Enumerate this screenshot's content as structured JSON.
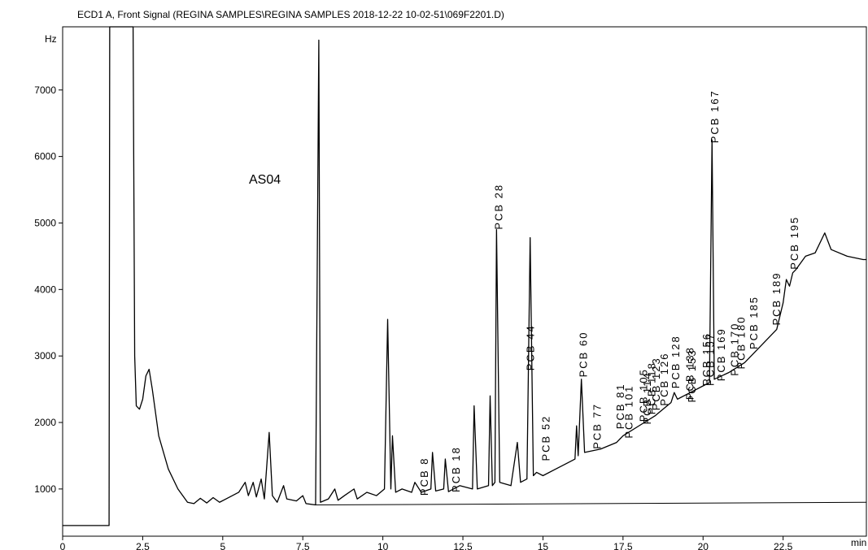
{
  "chart_data": {
    "type": "line",
    "title": "ECD1 A, Front Signal (REGINA SAMPLES\\REGINA SAMPLES 2018-12-22 10-02-51\\069F2201.D)",
    "y_label": "Hz",
    "x_label": "min",
    "sample_label": "AS04",
    "xlim": [
      0,
      25.1
    ],
    "ylim": [
      290,
      7950
    ],
    "xticks": [
      0,
      2.5,
      5,
      7.5,
      10,
      12.5,
      15,
      17.5,
      20,
      22.5
    ],
    "yticks": [
      1000,
      2000,
      3000,
      4000,
      5000,
      6000,
      7000
    ],
    "series": [
      {
        "color": "#000000",
        "x": [
          0,
          1.45,
          1.47,
          2.2,
          2.25,
          2.3,
          2.4,
          2.5,
          2.6,
          2.7,
          2.8,
          3.0,
          3.3,
          3.6,
          3.9,
          4.1,
          4.3,
          4.5,
          4.7,
          4.9,
          5.1,
          5.3,
          5.5,
          5.7,
          5.8,
          5.95,
          6.05,
          6.2,
          6.3,
          6.45,
          6.55,
          6.7,
          6.9,
          7.0,
          7.3,
          7.5,
          7.6,
          7.9,
          8.0,
          8.05,
          8.3,
          8.5,
          8.6,
          8.8,
          9.1,
          9.2,
          9.5,
          9.8,
          10.05,
          10.15,
          10.25,
          10.3,
          10.4,
          10.6,
          10.9,
          11.0,
          11.2,
          11.5,
          11.55,
          11.65,
          11.9,
          11.95,
          12.05,
          12.4,
          12.8,
          12.85,
          12.95,
          13.3,
          13.35,
          13.42,
          13.5,
          13.55,
          13.65,
          14.0,
          14.2,
          14.3,
          14.5,
          14.6,
          14.7,
          14.8,
          15.0,
          15.4,
          15.8,
          16.0,
          16.05,
          16.1,
          16.2,
          16.3,
          16.8,
          17.3,
          17.5,
          18.0,
          18.5,
          19.0,
          19.1,
          19.2,
          19.6,
          20.0,
          20.2,
          20.28,
          20.35,
          20.8,
          21.3,
          21.8,
          22.3,
          22.5,
          22.6,
          22.7,
          22.8,
          22.9,
          23.2,
          23.5,
          23.8,
          24.0,
          24.5,
          25.0,
          25.1
        ],
        "values": [
          450,
          450,
          7950,
          7950,
          3000,
          2250,
          2200,
          2350,
          2700,
          2800,
          2500,
          1800,
          1300,
          1000,
          800,
          780,
          860,
          790,
          870,
          800,
          850,
          900,
          950,
          1100,
          900,
          1100,
          880,
          1150,
          850,
          1850,
          900,
          800,
          1050,
          850,
          820,
          900,
          780,
          760,
          7750,
          800,
          850,
          1000,
          830,
          900,
          1000,
          850,
          950,
          900,
          1000,
          3550,
          1000,
          1800,
          950,
          1000,
          950,
          1100,
          950,
          1000,
          1550,
          970,
          1000,
          1450,
          960,
          1050,
          1000,
          2250,
          1000,
          1050,
          2400,
          1050,
          1100,
          4900,
          1100,
          1050,
          1700,
          1100,
          1150,
          4780,
          1200,
          1250,
          1200,
          1300,
          1400,
          1450,
          1950,
          1500,
          2650,
          1550,
          1600,
          1700,
          1800,
          1950,
          2100,
          2300,
          2450,
          2350,
          2450,
          2550,
          2600,
          6250,
          2650,
          2750,
          2900,
          3150,
          3400,
          3800,
          4150,
          4050,
          4250,
          4300,
          4500,
          4550,
          4850,
          4600,
          4500,
          4450,
          4450
        ]
      },
      {
        "color": "#000000",
        "x": [
          7.9,
          25.1
        ],
        "values": [
          760,
          800
        ]
      }
    ],
    "annotations": [
      {
        "text": "PCB 8",
        "x": 11.3,
        "y": 900
      },
      {
        "text": "PCB 18",
        "x": 12.3,
        "y": 950
      },
      {
        "text": "PCB 28",
        "x": 13.63,
        "y": 4900
      },
      {
        "text": "PCB 44",
        "x": 14.62,
        "y": 2780
      },
      {
        "text": "PCB 52",
        "x": 15.1,
        "y": 1420
      },
      {
        "text": "PCB 60",
        "x": 16.27,
        "y": 2680
      },
      {
        "text": "PCB 77",
        "x": 16.7,
        "y": 1600
      },
      {
        "text": "PCB 81",
        "x": 17.43,
        "y": 1900
      },
      {
        "text": "PCB 101",
        "x": 17.69,
        "y": 1760
      },
      {
        "text": "PCB 105",
        "x": 18.15,
        "y": 2010
      },
      {
        "text": "PCB 114",
        "x": 18.27,
        "y": 1970
      },
      {
        "text": "PCB 118",
        "x": 18.4,
        "y": 2120
      },
      {
        "text": "PCB 123",
        "x": 18.55,
        "y": 2180
      },
      {
        "text": "PCB 126",
        "x": 18.8,
        "y": 2250
      },
      {
        "text": "PCB 128",
        "x": 19.16,
        "y": 2510
      },
      {
        "text": "PCB 138",
        "x": 19.6,
        "y": 2340
      },
      {
        "text": "PCB 153",
        "x": 19.66,
        "y": 2300
      },
      {
        "text": "PCB 156",
        "x": 20.12,
        "y": 2550
      },
      {
        "text": "PCB 157",
        "x": 20.23,
        "y": 2550
      },
      {
        "text": "PCB 167",
        "x": 20.38,
        "y": 6200
      },
      {
        "text": "PCB 169",
        "x": 20.58,
        "y": 2620
      },
      {
        "text": "PCB 170",
        "x": 21.0,
        "y": 2700
      },
      {
        "text": "PCB 180",
        "x": 21.2,
        "y": 2800
      },
      {
        "text": "PCB 185",
        "x": 21.6,
        "y": 3100
      },
      {
        "text": "PCB 189",
        "x": 22.3,
        "y": 3460
      },
      {
        "text": "PCB 195",
        "x": 22.87,
        "y": 4300
      }
    ]
  }
}
